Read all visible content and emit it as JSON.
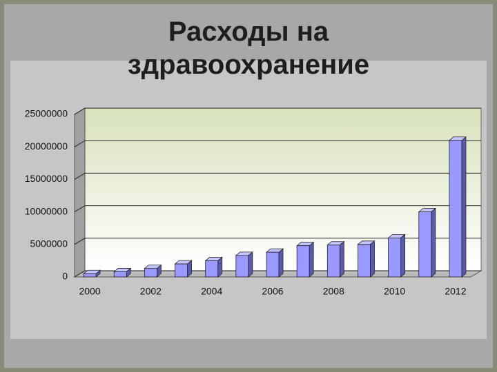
{
  "chart_data": {
    "type": "bar",
    "title": "Расходы на здравоохранение",
    "categories": [
      "2000",
      null,
      "2002",
      null,
      "2004",
      null,
      "2006",
      null,
      "2008",
      null,
      "2010",
      null,
      "2012"
    ],
    "values": [
      500000,
      800000,
      1300000,
      2000000,
      2500000,
      3300000,
      3800000,
      4800000,
      4900000,
      5000000,
      6000000,
      10000000,
      21000000
    ],
    "color": "#9999ff",
    "ylim": [
      0,
      25000000
    ],
    "yticks": [
      0,
      5000000,
      10000000,
      15000000,
      20000000,
      25000000
    ],
    "grid": true
  }
}
